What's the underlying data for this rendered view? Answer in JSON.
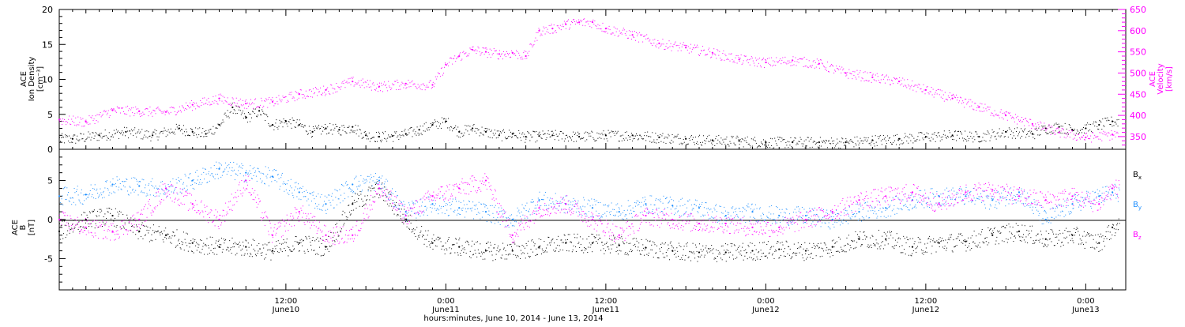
{
  "chart_data": [
    {
      "type": "scatter",
      "panel": "top",
      "ylabel_left": [
        "ACE",
        "Ion Density",
        "[cm⁻³]"
      ],
      "ylabel_right": [
        "ACE",
        "Velocity",
        "[km/s]"
      ],
      "ylim_left": [
        0,
        20
      ],
      "yticks_left": [
        "0",
        "5",
        "10",
        "15",
        "20"
      ],
      "ylim_right": [
        320,
        650
      ],
      "yticks_right": [
        "350",
        "400",
        "450",
        "500",
        "550",
        "600",
        "650"
      ],
      "colors": {
        "density": "#000000",
        "velocity": "#ff00ff"
      },
      "x_hours_range": [
        -5.0,
        75.0
      ],
      "series": [
        {
          "key": "density",
          "axis": "left",
          "x": [
            -4,
            -2,
            0,
            2,
            4,
            5,
            6,
            7,
            8,
            9,
            10,
            11,
            12,
            13,
            14,
            15,
            16,
            17,
            18,
            19,
            20,
            21,
            22,
            23,
            24,
            25,
            26,
            27,
            28,
            29,
            30,
            31,
            32,
            34,
            36,
            38,
            40,
            42,
            44,
            46,
            48,
            50,
            52,
            54,
            56,
            58,
            60,
            62,
            64,
            66,
            68,
            69,
            70,
            71,
            72,
            73,
            74
          ],
          "y": [
            1.5,
            2.0,
            2.5,
            2.0,
            3.0,
            2.5,
            2.2,
            3.5,
            6.0,
            4.5,
            5.5,
            3.5,
            4.0,
            3.5,
            2.5,
            3.0,
            2.8,
            3.2,
            2.0,
            1.8,
            1.9,
            2.2,
            2.8,
            3.5,
            4.0,
            2.5,
            3.0,
            2.5,
            2.0,
            2.2,
            1.8,
            1.9,
            2.0,
            1.8,
            2.0,
            2.0,
            1.7,
            1.5,
            1.3,
            1.2,
            1.0,
            1.0,
            1.0,
            1.0,
            1.3,
            1.5,
            1.8,
            2.0,
            1.8,
            2.5,
            2.2,
            3.0,
            3.2,
            2.8,
            3.0,
            3.5,
            4.0
          ]
        },
        {
          "key": "velocity",
          "axis": "right",
          "x": [
            -5,
            -3,
            -1,
            1,
            3,
            5,
            7,
            9,
            11,
            13,
            15,
            17,
            19,
            21,
            23,
            24,
            25,
            26,
            27,
            28,
            29,
            30,
            31,
            32,
            33,
            34,
            35,
            36,
            38,
            40,
            42,
            44,
            46,
            48,
            50,
            52,
            54,
            56,
            58,
            60,
            62,
            64,
            66,
            68,
            70,
            72,
            74
          ],
          "y": [
            390,
            385,
            412,
            410,
            408,
            425,
            440,
            428,
            432,
            450,
            460,
            480,
            468,
            475,
            472,
            520,
            540,
            555,
            550,
            545,
            548,
            540,
            600,
            605,
            615,
            620,
            620,
            605,
            590,
            570,
            560,
            548,
            532,
            525,
            530,
            522,
            500,
            490,
            480,
            460,
            440,
            420,
            400,
            380,
            360,
            348,
            355
          ]
        }
      ]
    },
    {
      "type": "scatter",
      "panel": "bottom",
      "ylabel_left": [
        "ACE",
        "B",
        "[nT]"
      ],
      "ylim": [
        -9,
        9
      ],
      "yticks": [
        "-5",
        "0",
        "5"
      ],
      "legend": [
        "Bₓ",
        "Bᵧ",
        "B_z"
      ],
      "legend_labels": {
        "bx": "B",
        "by": "B",
        "bz": "B",
        "bx_sub": "x",
        "by_sub": "y",
        "bz_sub": "z"
      },
      "legend_placement": "right",
      "colors": {
        "bx": "#000000",
        "by": "#1e8fff",
        "bz": "#ff00ff"
      },
      "series": [
        {
          "key": "bx",
          "x": [
            -5,
            -3,
            -1,
            1,
            3,
            5,
            7,
            9,
            11,
            13,
            15,
            17,
            19,
            21,
            23,
            25,
            27,
            29,
            31,
            33,
            35,
            37,
            39,
            41,
            43,
            45,
            47,
            49,
            51,
            53,
            55,
            57,
            59,
            61,
            63,
            65,
            67,
            69,
            71,
            73,
            74
          ],
          "y": [
            -1.5,
            0.0,
            0.5,
            -1.5,
            -2.0,
            -3.0,
            -3.5,
            -3.5,
            -4.0,
            -3.0,
            -3.5,
            2.0,
            4.0,
            0.0,
            -3.0,
            -3.5,
            -4.0,
            -4.0,
            -3.5,
            -3.0,
            -3.0,
            -3.3,
            -3.6,
            -4.0,
            -4.2,
            -4.2,
            -4.0,
            -3.8,
            -4.0,
            -3.5,
            -2.5,
            -2.5,
            -3.5,
            -3.0,
            -2.8,
            -2.0,
            -1.5,
            -2.5,
            -2.0,
            -3.0,
            -1.0
          ]
        },
        {
          "key": "by",
          "x": [
            -5,
            -3,
            -1,
            1,
            3,
            5,
            7,
            9,
            11,
            13,
            15,
            17,
            19,
            21,
            23,
            25,
            27,
            29,
            31,
            33,
            35,
            37,
            39,
            41,
            43,
            45,
            47,
            49,
            51,
            53,
            55,
            57,
            59,
            61,
            63,
            65,
            67,
            69,
            71,
            73,
            74
          ],
          "y": [
            3.0,
            3.2,
            4.5,
            4.3,
            4.0,
            5.0,
            6.5,
            6.0,
            5.5,
            3.5,
            2.0,
            4.5,
            5.0,
            1.0,
            2.0,
            1.5,
            1.0,
            0.0,
            2.5,
            2.0,
            1.5,
            1.0,
            2.0,
            1.8,
            1.5,
            0.5,
            1.0,
            0.5,
            0.5,
            0.0,
            1.0,
            1.5,
            2.5,
            3.0,
            3.0,
            2.5,
            3.5,
            0.0,
            2.0,
            3.0,
            3.5
          ]
        },
        {
          "key": "bz",
          "x": [
            -5,
            -3,
            -1,
            1,
            3,
            5,
            7,
            9,
            11,
            13,
            15,
            17,
            19,
            21,
            23,
            25,
            27,
            29,
            31,
            33,
            35,
            37,
            39,
            41,
            43,
            45,
            47,
            49,
            51,
            53,
            55,
            57,
            59,
            61,
            63,
            65,
            67,
            69,
            71,
            73,
            74
          ],
          "y": [
            0.0,
            -1.0,
            -1.5,
            0.0,
            4.0,
            2.0,
            0.0,
            5.0,
            -2.0,
            1.0,
            -2.0,
            -2.0,
            4.0,
            0.5,
            3.0,
            4.0,
            5.0,
            -2.0,
            1.5,
            2.0,
            0.0,
            -2.0,
            0.5,
            0.0,
            -0.5,
            -0.5,
            -1.0,
            -1.0,
            0.0,
            1.0,
            2.5,
            3.0,
            3.5,
            2.0,
            3.5,
            3.8,
            3.0,
            2.5,
            3.0,
            2.0,
            4.0
          ]
        }
      ]
    }
  ],
  "x_axis": {
    "ticks": [
      {
        "time": "12:00",
        "date": "June10"
      },
      {
        "time": "0:00",
        "date": "June11"
      },
      {
        "time": "12:00",
        "date": "June11"
      },
      {
        "time": "0:00",
        "date": "June12"
      },
      {
        "time": "12:00",
        "date": "June12"
      },
      {
        "time": "0:00",
        "date": "June13"
      }
    ],
    "label": "hours:minutes, June 10, 2014 - June 13, 2014"
  }
}
